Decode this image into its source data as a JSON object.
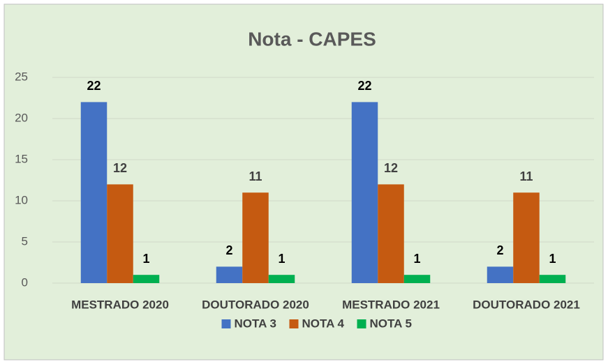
{
  "chart_data": {
    "type": "bar",
    "title": "Nota - CAPES",
    "categories": [
      "MESTRADO 2020",
      "DOUTORADO 2020",
      "MESTRADO 2021",
      "DOUTORADO 2021"
    ],
    "series": [
      {
        "name": "NOTA 3",
        "color": "#4472c4",
        "values": [
          22,
          2,
          22,
          2
        ]
      },
      {
        "name": "NOTA 4",
        "color": "#c55a11",
        "values": [
          12,
          11,
          12,
          11
        ]
      },
      {
        "name": "NOTA 5",
        "color": "#00b050",
        "values": [
          1,
          1,
          1,
          1
        ]
      }
    ],
    "ylim": [
      0,
      25
    ],
    "yticks": [
      0,
      5,
      10,
      15,
      20,
      25
    ],
    "grid": true,
    "legend": "bottom"
  }
}
